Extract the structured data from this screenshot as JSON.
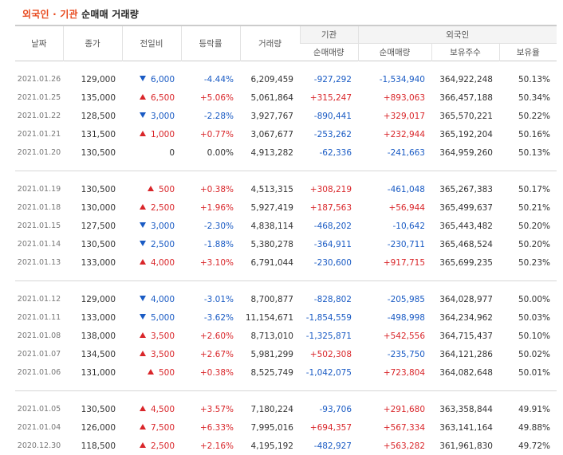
{
  "title": {
    "part1": "외국인",
    "dot": " · ",
    "part2": "기관",
    "rest": " 순매매 거래량"
  },
  "headers": {
    "date": "날짜",
    "close": "종가",
    "change": "전일비",
    "rate": "등락률",
    "volume": "거래량",
    "inst_group": "기관",
    "foreign_group": "외국인",
    "inst_net": "순매매량",
    "foreign_net": "순매매량",
    "foreign_holding": "보유주수",
    "foreign_ratio": "보유율"
  },
  "groups": [
    [
      {
        "date": "2021.01.26",
        "close": "129,000",
        "dir": "down",
        "change": "6,000",
        "rate": "-4.44%",
        "volume": "6,209,459",
        "inst": "-927,292",
        "foreign": "-1,534,940",
        "holding": "364,922,248",
        "ratio": "50.13%"
      },
      {
        "date": "2021.01.25",
        "close": "135,000",
        "dir": "up",
        "change": "6,500",
        "rate": "+5.06%",
        "volume": "5,061,864",
        "inst": "+315,247",
        "foreign": "+893,063",
        "holding": "366,457,188",
        "ratio": "50.34%"
      },
      {
        "date": "2021.01.22",
        "close": "128,500",
        "dir": "down",
        "change": "3,000",
        "rate": "-2.28%",
        "volume": "3,927,767",
        "inst": "-890,441",
        "foreign": "+329,017",
        "holding": "365,570,221",
        "ratio": "50.22%"
      },
      {
        "date": "2021.01.21",
        "close": "131,500",
        "dir": "up",
        "change": "1,000",
        "rate": "+0.77%",
        "volume": "3,067,677",
        "inst": "-253,262",
        "foreign": "+232,944",
        "holding": "365,192,204",
        "ratio": "50.16%"
      },
      {
        "date": "2021.01.20",
        "close": "130,500",
        "dir": "none",
        "change": "0",
        "rate": "0.00%",
        "volume": "4,913,282",
        "inst": "-62,336",
        "foreign": "-241,663",
        "holding": "364,959,260",
        "ratio": "50.13%"
      }
    ],
    [
      {
        "date": "2021.01.19",
        "close": "130,500",
        "dir": "up",
        "change": "500",
        "rate": "+0.38%",
        "volume": "4,513,315",
        "inst": "+308,219",
        "foreign": "-461,048",
        "holding": "365,267,383",
        "ratio": "50.17%"
      },
      {
        "date": "2021.01.18",
        "close": "130,000",
        "dir": "up",
        "change": "2,500",
        "rate": "+1.96%",
        "volume": "5,927,419",
        "inst": "+187,563",
        "foreign": "+56,944",
        "holding": "365,499,637",
        "ratio": "50.21%"
      },
      {
        "date": "2021.01.15",
        "close": "127,500",
        "dir": "down",
        "change": "3,000",
        "rate": "-2.30%",
        "volume": "4,838,114",
        "inst": "-468,202",
        "foreign": "-10,642",
        "holding": "365,443,482",
        "ratio": "50.20%"
      },
      {
        "date": "2021.01.14",
        "close": "130,500",
        "dir": "down",
        "change": "2,500",
        "rate": "-1.88%",
        "volume": "5,380,278",
        "inst": "-364,911",
        "foreign": "-230,711",
        "holding": "365,468,524",
        "ratio": "50.20%"
      },
      {
        "date": "2021.01.13",
        "close": "133,000",
        "dir": "up",
        "change": "4,000",
        "rate": "+3.10%",
        "volume": "6,791,044",
        "inst": "-230,600",
        "foreign": "+917,715",
        "holding": "365,699,235",
        "ratio": "50.23%"
      }
    ],
    [
      {
        "date": "2021.01.12",
        "close": "129,000",
        "dir": "down",
        "change": "4,000",
        "rate": "-3.01%",
        "volume": "8,700,877",
        "inst": "-828,802",
        "foreign": "-205,985",
        "holding": "364,028,977",
        "ratio": "50.00%"
      },
      {
        "date": "2021.01.11",
        "close": "133,000",
        "dir": "down",
        "change": "5,000",
        "rate": "-3.62%",
        "volume": "11,154,671",
        "inst": "-1,854,559",
        "foreign": "-498,998",
        "holding": "364,234,962",
        "ratio": "50.03%"
      },
      {
        "date": "2021.01.08",
        "close": "138,000",
        "dir": "up",
        "change": "3,500",
        "rate": "+2.60%",
        "volume": "8,713,010",
        "inst": "-1,325,871",
        "foreign": "+542,556",
        "holding": "364,715,437",
        "ratio": "50.10%"
      },
      {
        "date": "2021.01.07",
        "close": "134,500",
        "dir": "up",
        "change": "3,500",
        "rate": "+2.67%",
        "volume": "5,981,299",
        "inst": "+502,308",
        "foreign": "-235,750",
        "holding": "364,121,286",
        "ratio": "50.02%"
      },
      {
        "date": "2021.01.06",
        "close": "131,000",
        "dir": "up",
        "change": "500",
        "rate": "+0.38%",
        "volume": "8,525,749",
        "inst": "-1,042,075",
        "foreign": "+723,804",
        "holding": "364,082,648",
        "ratio": "50.01%"
      }
    ],
    [
      {
        "date": "2021.01.05",
        "close": "130,500",
        "dir": "up",
        "change": "4,500",
        "rate": "+3.57%",
        "volume": "7,180,224",
        "inst": "-93,706",
        "foreign": "+291,680",
        "holding": "363,358,844",
        "ratio": "49.91%"
      },
      {
        "date": "2021.01.04",
        "close": "126,000",
        "dir": "up",
        "change": "7,500",
        "rate": "+6.33%",
        "volume": "7,995,016",
        "inst": "+694,357",
        "foreign": "+567,334",
        "holding": "363,141,164",
        "ratio": "49.88%"
      },
      {
        "date": "2020.12.30",
        "close": "118,500",
        "dir": "up",
        "change": "2,500",
        "rate": "+2.16%",
        "volume": "4,195,192",
        "inst": "-482,927",
        "foreign": "+563,282",
        "holding": "361,961,830",
        "ratio": "49.72%"
      }
    ]
  ],
  "colors": {
    "up": "#d9262a",
    "down": "#1a5bc4",
    "accent": "#e8491d"
  }
}
